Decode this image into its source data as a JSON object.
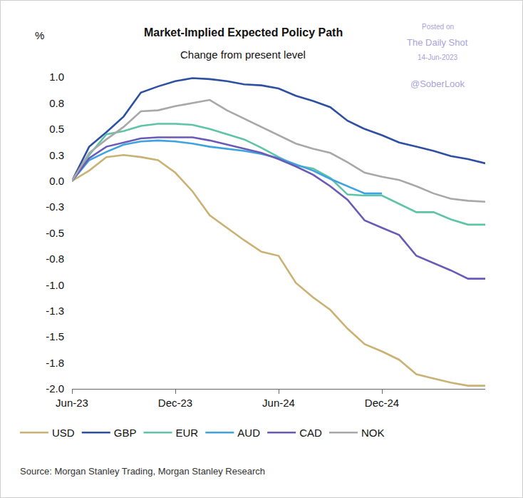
{
  "chart_data": {
    "type": "line",
    "title": "Market-Implied Expected Policy Path",
    "subtitle": "Change from present level",
    "y_label": "%",
    "source": "Source: Morgan Stanley Trading, Morgan Stanley Research",
    "watermark": [
      "Posted on",
      "The Daily Shot",
      "14-Jun-2023",
      "@SoberLook"
    ],
    "categories": [
      "Jun-23",
      null,
      null,
      null,
      null,
      null,
      "Dec-23",
      null,
      null,
      null,
      null,
      null,
      "Jun-24",
      null,
      null,
      null,
      null,
      null,
      "Dec-24",
      null,
      null,
      null,
      null,
      null,
      null
    ],
    "series": [
      {
        "name": "USD",
        "color": "#c9b273",
        "values": [
          0,
          0.1,
          0.23,
          0.25,
          0.23,
          0.2,
          0.08,
          -0.1,
          -0.33,
          -0.45,
          -0.57,
          -0.68,
          -0.72,
          -0.98,
          -1.12,
          -1.24,
          -1.42,
          -1.57,
          -1.64,
          -1.72,
          -1.86,
          -1.9,
          -1.94,
          -1.97,
          -1.97
        ]
      },
      {
        "name": "GBP",
        "color": "#2e50a3",
        "values": [
          0,
          0.33,
          0.47,
          0.62,
          0.85,
          0.91,
          0.96,
          0.99,
          0.98,
          0.96,
          0.93,
          0.92,
          0.89,
          0.82,
          0.77,
          0.71,
          0.58,
          0.5,
          0.44,
          0.37,
          0.33,
          0.29,
          0.24,
          0.21,
          0.17
        ]
      },
      {
        "name": "EUR",
        "color": "#5ec4a6",
        "values": [
          0,
          0.25,
          0.45,
          0.48,
          0.53,
          0.55,
          0.55,
          0.54,
          0.5,
          0.45,
          0.4,
          0.32,
          0.23,
          0.15,
          0.12,
          0.03,
          -0.13,
          -0.14,
          -0.14,
          -0.22,
          -0.3,
          -0.3,
          -0.37,
          -0.42,
          -0.42
        ]
      },
      {
        "name": "AUD",
        "color": "#3fa3e0",
        "values": [
          0,
          0.2,
          0.28,
          0.35,
          0.38,
          0.39,
          0.38,
          0.36,
          0.33,
          0.31,
          0.29,
          0.26,
          0.22,
          0.16,
          0.1,
          0.02,
          -0.05,
          -0.12,
          -0.12,
          null,
          null,
          null,
          null,
          null,
          null
        ]
      },
      {
        "name": "CAD",
        "color": "#6a5ab8",
        "values": [
          0,
          0.22,
          0.33,
          0.37,
          0.41,
          0.42,
          0.42,
          0.42,
          0.39,
          0.35,
          0.31,
          0.27,
          0.21,
          0.14,
          0.06,
          -0.05,
          -0.18,
          -0.38,
          -0.45,
          -0.52,
          -0.72,
          -0.79,
          -0.86,
          -0.94,
          -0.94
        ]
      },
      {
        "name": "NOK",
        "color": "#a8a8a8",
        "values": [
          0,
          0.27,
          0.4,
          0.52,
          0.67,
          0.68,
          0.72,
          0.75,
          0.78,
          0.68,
          0.6,
          0.52,
          0.44,
          0.36,
          0.31,
          0.27,
          0.18,
          0.08,
          0.04,
          0.01,
          -0.05,
          -0.12,
          -0.17,
          -0.19,
          -0.2
        ]
      }
    ],
    "ylim": [
      -2.0,
      1.0
    ],
    "yticks": [
      {
        "value": -2.0,
        "label": "-2.0"
      },
      {
        "value": -1.75,
        "label": "-1.8"
      },
      -1.5,
      {
        "value": -1.25,
        "label": "-1.3"
      },
      {
        "value": -1.0,
        "label": "-1.0"
      },
      {
        "value": -0.75,
        "label": "-0.8"
      },
      -0.5,
      {
        "value": -0.25,
        "label": "-0.3"
      },
      {
        "value": 0,
        "label": "0.0"
      },
      {
        "value": 0.25,
        "label": "0.3"
      },
      0.5,
      {
        "value": 0.75,
        "label": "0.8"
      },
      {
        "value": 1.0,
        "label": "1.0"
      }
    ],
    "grid": false,
    "legend": "bottom"
  }
}
